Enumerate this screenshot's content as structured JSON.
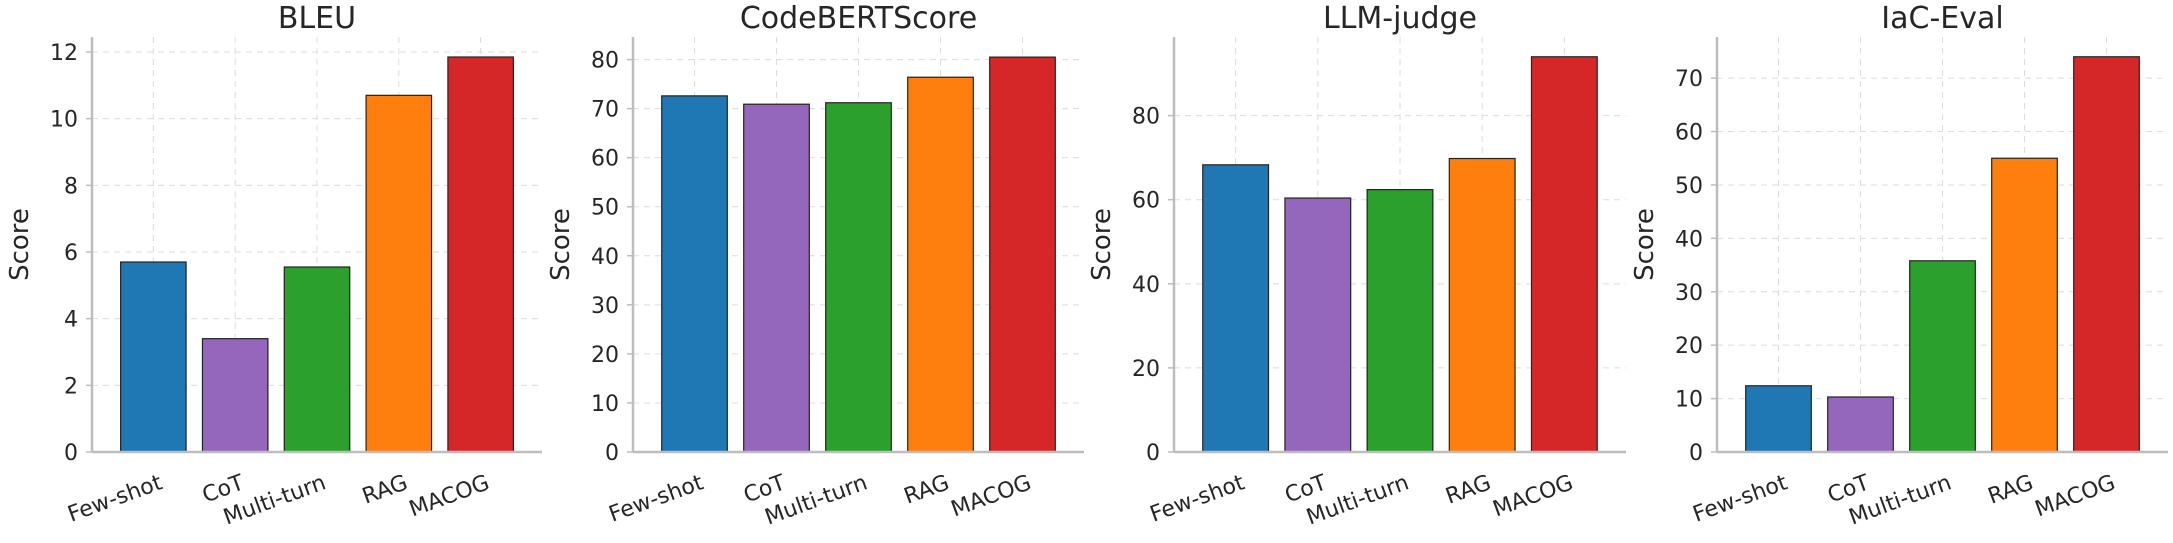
{
  "chart_data": [
    {
      "type": "bar",
      "title": "BLEU",
      "xlabel": "",
      "ylabel": "Score",
      "categories": [
        "Few-shot",
        "CoT",
        "Multi-turn",
        "RAG",
        "MACOG"
      ],
      "values": [
        5.7,
        3.4,
        5.55,
        10.7,
        11.85
      ],
      "ylim": [
        0,
        12.45
      ],
      "yticks": [
        0,
        2,
        4,
        6,
        8,
        10,
        12
      ],
      "grid": true,
      "colors": [
        "#1f77b4",
        "#9467bd",
        "#2ca02c",
        "#ff7f0e",
        "#d62728"
      ]
    },
    {
      "type": "bar",
      "title": "CodeBERTScore",
      "xlabel": "",
      "ylabel": "Score",
      "categories": [
        "Few-shot",
        "CoT",
        "Multi-turn",
        "RAG",
        "MACOG"
      ],
      "values": [
        72.6,
        70.9,
        71.2,
        76.4,
        80.5
      ],
      "ylim": [
        0,
        84.6
      ],
      "yticks": [
        0,
        10,
        20,
        30,
        40,
        50,
        60,
        70,
        80
      ],
      "grid": true,
      "colors": [
        "#1f77b4",
        "#9467bd",
        "#2ca02c",
        "#ff7f0e",
        "#d62728"
      ]
    },
    {
      "type": "bar",
      "title": "LLM-judge",
      "xlabel": "",
      "ylabel": "Score",
      "categories": [
        "Few-shot",
        "CoT",
        "Multi-turn",
        "RAG",
        "MACOG"
      ],
      "values": [
        68.3,
        60.4,
        62.4,
        69.8,
        94.0
      ],
      "ylim": [
        0,
        98.7
      ],
      "yticks": [
        0,
        20,
        40,
        60,
        80
      ],
      "grid": true,
      "colors": [
        "#1f77b4",
        "#9467bd",
        "#2ca02c",
        "#ff7f0e",
        "#d62728"
      ]
    },
    {
      "type": "bar",
      "title": "IaC-Eval",
      "xlabel": "",
      "ylabel": "Score",
      "categories": [
        "Few-shot",
        "CoT",
        "Multi-turn",
        "RAG",
        "MACOG"
      ],
      "values": [
        12.4,
        10.3,
        35.8,
        55.0,
        74.0
      ],
      "ylim": [
        0,
        77.7
      ],
      "yticks": [
        0,
        10,
        20,
        30,
        40,
        50,
        60,
        70
      ],
      "grid": true,
      "colors": [
        "#1f77b4",
        "#9467bd",
        "#2ca02c",
        "#ff7f0e",
        "#d62728"
      ]
    }
  ]
}
